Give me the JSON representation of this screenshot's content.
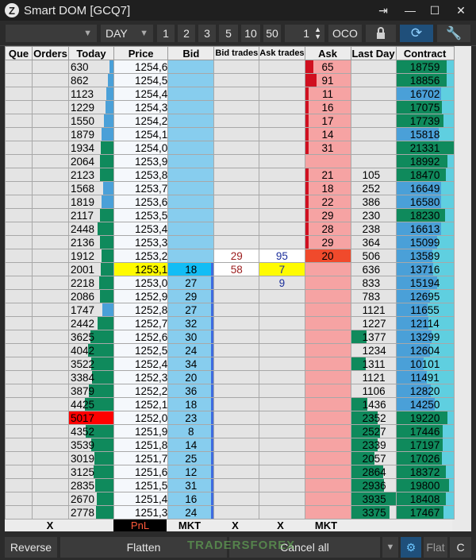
{
  "window": {
    "title": "Smart DOM [GCQ7]",
    "controls": [
      "pin-icon",
      "minimize-icon",
      "maximize-icon",
      "close-icon"
    ]
  },
  "toolbar": {
    "account_value": "",
    "period_value": "DAY",
    "qty_presets": [
      "1",
      "2",
      "3",
      "5",
      "10",
      "50"
    ],
    "quantity_value": "1",
    "oco_label": "OCO",
    "icons": [
      "lock-icon",
      "refresh-icon",
      "settings-wrench-icon"
    ]
  },
  "colors": {
    "bid_cell": "#87cdee",
    "ask_cell": "#f6a3a3",
    "price_highlight": "#fffb00",
    "today_bar": "#0f8a5c",
    "today_bar_light": "#4aa0d8",
    "contract_bar": "#0f8a5c",
    "contract_bar_light": "#4aa0d8",
    "lastday_bar": "#0f8a5c",
    "ask_bar": "#d01020",
    "max_volume": "#ff0000"
  },
  "columns": [
    "Que",
    "Orders",
    "Today",
    "Price",
    "Bid",
    "Bid trades",
    "Ask trades",
    "Ask",
    "Last Day",
    "Contract"
  ],
  "scale": {
    "today_max": 5017,
    "contract_max": 21331,
    "lastday_max": 3935,
    "ask_max": 91,
    "bid_max": 36
  },
  "rows": [
    {
      "today": "630",
      "price": "1254,6",
      "bid": "",
      "bid_trades": "",
      "ask_trades": "",
      "ask": "65",
      "last_day": "",
      "contract": "18759"
    },
    {
      "today": "862",
      "price": "1254,5",
      "bid": "",
      "bid_trades": "",
      "ask_trades": "",
      "ask": "91",
      "last_day": "",
      "contract": "18856"
    },
    {
      "today": "1123",
      "price": "1254,4",
      "bid": "",
      "bid_trades": "",
      "ask_trades": "",
      "ask": "11",
      "last_day": "",
      "contract": "16702"
    },
    {
      "today": "1229",
      "price": "1254,3",
      "bid": "",
      "bid_trades": "",
      "ask_trades": "",
      "ask": "16",
      "last_day": "",
      "contract": "17075"
    },
    {
      "today": "1550",
      "price": "1254,2",
      "bid": "",
      "bid_trades": "",
      "ask_trades": "",
      "ask": "17",
      "last_day": "",
      "contract": "17739"
    },
    {
      "today": "1879",
      "price": "1254,1",
      "bid": "",
      "bid_trades": "",
      "ask_trades": "",
      "ask": "14",
      "last_day": "",
      "contract": "15818"
    },
    {
      "today": "1934",
      "price": "1254,0",
      "bid": "",
      "bid_trades": "",
      "ask_trades": "",
      "ask": "31",
      "last_day": "",
      "contract": "21331"
    },
    {
      "today": "2064",
      "price": "1253,9",
      "bid": "",
      "bid_trades": "",
      "ask_trades": "",
      "ask": "",
      "last_day": "",
      "contract": "18992"
    },
    {
      "today": "2123",
      "price": "1253,8",
      "bid": "",
      "bid_trades": "",
      "ask_trades": "",
      "ask": "21",
      "last_day": "105",
      "contract": "18470"
    },
    {
      "today": "1568",
      "price": "1253,7",
      "bid": "",
      "bid_trades": "",
      "ask_trades": "",
      "ask": "18",
      "last_day": "252",
      "contract": "16649"
    },
    {
      "today": "1819",
      "price": "1253,6",
      "bid": "",
      "bid_trades": "",
      "ask_trades": "",
      "ask": "22",
      "last_day": "386",
      "contract": "16580"
    },
    {
      "today": "2117",
      "price": "1253,5",
      "bid": "",
      "bid_trades": "",
      "ask_trades": "",
      "ask": "29",
      "last_day": "230",
      "contract": "18230"
    },
    {
      "today": "2448",
      "price": "1253,4",
      "bid": "",
      "bid_trades": "",
      "ask_trades": "",
      "ask": "28",
      "last_day": "238",
      "contract": "16613"
    },
    {
      "today": "2136",
      "price": "1253,3",
      "bid": "",
      "bid_trades": "",
      "ask_trades": "",
      "ask": "29",
      "last_day": "364",
      "contract": "15099"
    },
    {
      "today": "1912",
      "price": "1253,2",
      "bid": "",
      "bid_trades": "29",
      "ask_trades": "95",
      "ask": "20",
      "last_day": "506",
      "contract": "13589"
    },
    {
      "today": "2001",
      "price": "1253,1",
      "bid": "18",
      "bid_trades": "58",
      "ask_trades": "7",
      "ask": "",
      "last_day": "636",
      "contract": "13716"
    },
    {
      "today": "2218",
      "price": "1253,0",
      "bid": "27",
      "bid_trades": "",
      "ask_trades": "9",
      "ask": "",
      "last_day": "833",
      "contract": "15194"
    },
    {
      "today": "2086",
      "price": "1252,9",
      "bid": "29",
      "bid_trades": "",
      "ask_trades": "",
      "ask": "",
      "last_day": "783",
      "contract": "12695"
    },
    {
      "today": "1747",
      "price": "1252,8",
      "bid": "27",
      "bid_trades": "",
      "ask_trades": "",
      "ask": "",
      "last_day": "1121",
      "contract": "11655"
    },
    {
      "today": "2442",
      "price": "1252,7",
      "bid": "32",
      "bid_trades": "",
      "ask_trades": "",
      "ask": "",
      "last_day": "1227",
      "contract": "12114"
    },
    {
      "today": "3625",
      "price": "1252,6",
      "bid": "30",
      "bid_trades": "",
      "ask_trades": "",
      "ask": "",
      "last_day": "1377",
      "contract": "13299"
    },
    {
      "today": "4042",
      "price": "1252,5",
      "bid": "24",
      "bid_trades": "",
      "ask_trades": "",
      "ask": "",
      "last_day": "1234",
      "contract": "12604"
    },
    {
      "today": "3522",
      "price": "1252,4",
      "bid": "34",
      "bid_trades": "",
      "ask_trades": "",
      "ask": "",
      "last_day": "1311",
      "contract": "10101"
    },
    {
      "today": "3384",
      "price": "1252,3",
      "bid": "20",
      "bid_trades": "",
      "ask_trades": "",
      "ask": "",
      "last_day": "1121",
      "contract": "11491"
    },
    {
      "today": "3879",
      "price": "1252,2",
      "bid": "36",
      "bid_trades": "",
      "ask_trades": "",
      "ask": "",
      "last_day": "1106",
      "contract": "12820"
    },
    {
      "today": "4425",
      "price": "1252,1",
      "bid": "18",
      "bid_trades": "",
      "ask_trades": "",
      "ask": "",
      "last_day": "1436",
      "contract": "14250"
    },
    {
      "today": "5017",
      "price": "1252,0",
      "bid": "23",
      "bid_trades": "",
      "ask_trades": "",
      "ask": "",
      "last_day": "2352",
      "contract": "19220"
    },
    {
      "today": "4352",
      "price": "1251,9",
      "bid": "8",
      "bid_trades": "",
      "ask_trades": "",
      "ask": "",
      "last_day": "2527",
      "contract": "17446"
    },
    {
      "today": "3539",
      "price": "1251,8",
      "bid": "14",
      "bid_trades": "",
      "ask_trades": "",
      "ask": "",
      "last_day": "2339",
      "contract": "17197"
    },
    {
      "today": "3019",
      "price": "1251,7",
      "bid": "25",
      "bid_trades": "",
      "ask_trades": "",
      "ask": "",
      "last_day": "2057",
      "contract": "17026"
    },
    {
      "today": "3125",
      "price": "1251,6",
      "bid": "12",
      "bid_trades": "",
      "ask_trades": "",
      "ask": "",
      "last_day": "2864",
      "contract": "18372"
    },
    {
      "today": "2835",
      "price": "1251,5",
      "bid": "31",
      "bid_trades": "",
      "ask_trades": "",
      "ask": "",
      "last_day": "2936",
      "contract": "19800"
    },
    {
      "today": "2670",
      "price": "1251,4",
      "bid": "16",
      "bid_trades": "",
      "ask_trades": "",
      "ask": "",
      "last_day": "3935",
      "contract": "18408"
    },
    {
      "today": "2778",
      "price": "1251,3",
      "bid": "24",
      "bid_trades": "",
      "ask_trades": "",
      "ask": "",
      "last_day": "3375",
      "contract": "17467"
    }
  ],
  "current_price_index": 15,
  "max_today_index": 26,
  "footer": {
    "que": "",
    "orders": "X",
    "today": "",
    "price": "PnL",
    "bid": "MKT",
    "bid_trades": "X",
    "ask_trades": "X",
    "ask": "MKT",
    "last_day": "",
    "contract": ""
  },
  "bottom": {
    "reverse_label": "Reverse",
    "flatten_label": "Flatten",
    "cancel_all_label": "Cancel all",
    "flat_label": "Flat",
    "c_label": "C",
    "watermark": "TRADERSFOREX"
  }
}
